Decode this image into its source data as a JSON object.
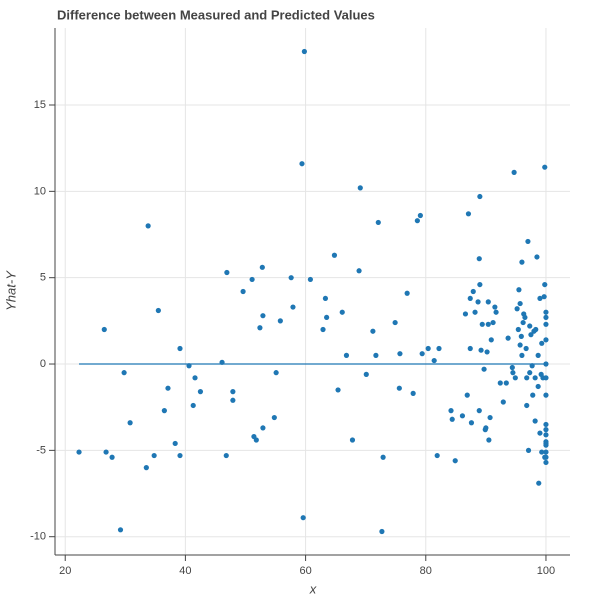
{
  "chart_data": {
    "type": "scatter",
    "title": "Difference between Measured and Predicted Values",
    "x_label": "x",
    "y_label": "Yhat-Y",
    "color": "#1f77b4",
    "grid": true,
    "xlim": [
      18.3,
      104
    ],
    "ylim": [
      -11.06,
      19.46
    ],
    "xticks": [
      20,
      40,
      60,
      80,
      100
    ],
    "yticks": [
      -10,
      -5,
      0,
      5,
      10,
      15
    ],
    "x": [
      22.3,
      26.5,
      26.8,
      27.8,
      29.2,
      29.8,
      30.8,
      33.5,
      33.8,
      34.8,
      35.5,
      36.5,
      37.1,
      38.3,
      39.1,
      39.1,
      40.6,
      41.3,
      41.6,
      42.5,
      46.1,
      46.8,
      46.9,
      47.9,
      47.9,
      49.6,
      51.1,
      51.4,
      51.8,
      52.4,
      52.8,
      52.9,
      52.9,
      54.8,
      55.1,
      55.8,
      57.6,
      57.9,
      59.4,
      59.6,
      59.8,
      60.8,
      62.9,
      63.3,
      63.5,
      64.8,
      65.4,
      66.1,
      66.8,
      67.8,
      68.9,
      69.1,
      70.1,
      71.2,
      71.7,
      72.1,
      72.9,
      72.7,
      74.9,
      75.6,
      75.7,
      76.9,
      77.9,
      78.6,
      79.1,
      79.4,
      80.4,
      81.4,
      81.9,
      82.2,
      84.2,
      84.4,
      84.9,
      86.1,
      86.6,
      86.9,
      87.1,
      87.4,
      87.4,
      87.6,
      87.9,
      88.2,
      88.7,
      88.9,
      88.9,
      89.0,
      89.0,
      89.2,
      89.4,
      89.7,
      89.9,
      90.0,
      90.2,
      90.4,
      90.4,
      90.5,
      90.7,
      90.9,
      91.2,
      91.5,
      91.7,
      92.4,
      92.9,
      93.4,
      93.7,
      94.4,
      94.5,
      94.7,
      94.9,
      95.2,
      95.4,
      95.5,
      95.7,
      95.7,
      95.9,
      96.0,
      96.0,
      96.2,
      96.3,
      96.5,
      96.7,
      96.8,
      96.8,
      97.0,
      97.1,
      97.3,
      97.3,
      97.5,
      97.7,
      97.8,
      98.0,
      98.2,
      98.2,
      98.3,
      98.5,
      98.7,
      98.7,
      98.8,
      99.0,
      99.0,
      99.2,
      99.3,
      99.3,
      99.5,
      99.7,
      99.8,
      99.8,
      99.8,
      100,
      100,
      100,
      100,
      100,
      100,
      100,
      100,
      100,
      100,
      100,
      100,
      100,
      100,
      100,
      100
    ],
    "y": [
      -5.1,
      2.0,
      -5.1,
      -5.4,
      -9.6,
      -0.5,
      -3.4,
      -6.0,
      8.0,
      -5.3,
      3.1,
      -2.7,
      -1.4,
      -4.6,
      0.9,
      -5.3,
      -0.1,
      -2.4,
      -0.8,
      -1.6,
      0.1,
      -5.3,
      5.3,
      -1.6,
      -2.1,
      4.2,
      4.9,
      -4.2,
      -4.4,
      2.1,
      5.6,
      2.8,
      -3.7,
      -3.1,
      -0.5,
      2.5,
      5.0,
      3.3,
      11.6,
      -8.9,
      18.1,
      4.9,
      2.0,
      3.8,
      2.7,
      6.3,
      -1.5,
      3.0,
      0.5,
      -4.4,
      5.4,
      10.2,
      -0.6,
      1.9,
      0.5,
      8.2,
      -5.4,
      -9.7,
      2.4,
      -1.4,
      0.6,
      4.1,
      -1.7,
      8.3,
      8.6,
      0.6,
      0.9,
      0.2,
      -5.3,
      0.9,
      -2.7,
      -3.2,
      -5.6,
      -3.0,
      2.9,
      -1.8,
      8.7,
      3.8,
      0.9,
      -3.4,
      4.2,
      3.0,
      3.6,
      -2.7,
      6.1,
      9.7,
      4.6,
      0.8,
      2.3,
      -0.3,
      -3.8,
      -3.7,
      0.7,
      2.3,
      3.6,
      -4.4,
      -3.1,
      1.4,
      2.4,
      3.3,
      3.0,
      -1.1,
      -2.2,
      -1.1,
      1.5,
      -0.2,
      -0.5,
      11.1,
      -0.8,
      3.2,
      2.0,
      4.3,
      3.5,
      1.1,
      1.6,
      0.5,
      5.9,
      2.4,
      2.9,
      2.7,
      0.9,
      -0.8,
      -2.4,
      7.1,
      -5.0,
      2.2,
      -0.5,
      1.7,
      -0.1,
      -1.8,
      1.9,
      -0.8,
      -3.3,
      2.0,
      6.2,
      0.5,
      -1.3,
      -6.9,
      3.8,
      -4.0,
      -0.6,
      1.2,
      -5.1,
      -0.8,
      3.9,
      -5.4,
      4.6,
      11.4,
      3.0,
      2.7,
      2.3,
      1.4,
      0,
      -0.8,
      -3.5,
      -3.8,
      -4.1,
      -4.5,
      -4.7,
      -5.1,
      -5.4,
      -5.7,
      -1.8,
      -4.6
    ],
    "line": {
      "color": "#1f77b4",
      "x": [
        22.3,
        100
      ],
      "y": [
        0,
        0
      ]
    }
  }
}
